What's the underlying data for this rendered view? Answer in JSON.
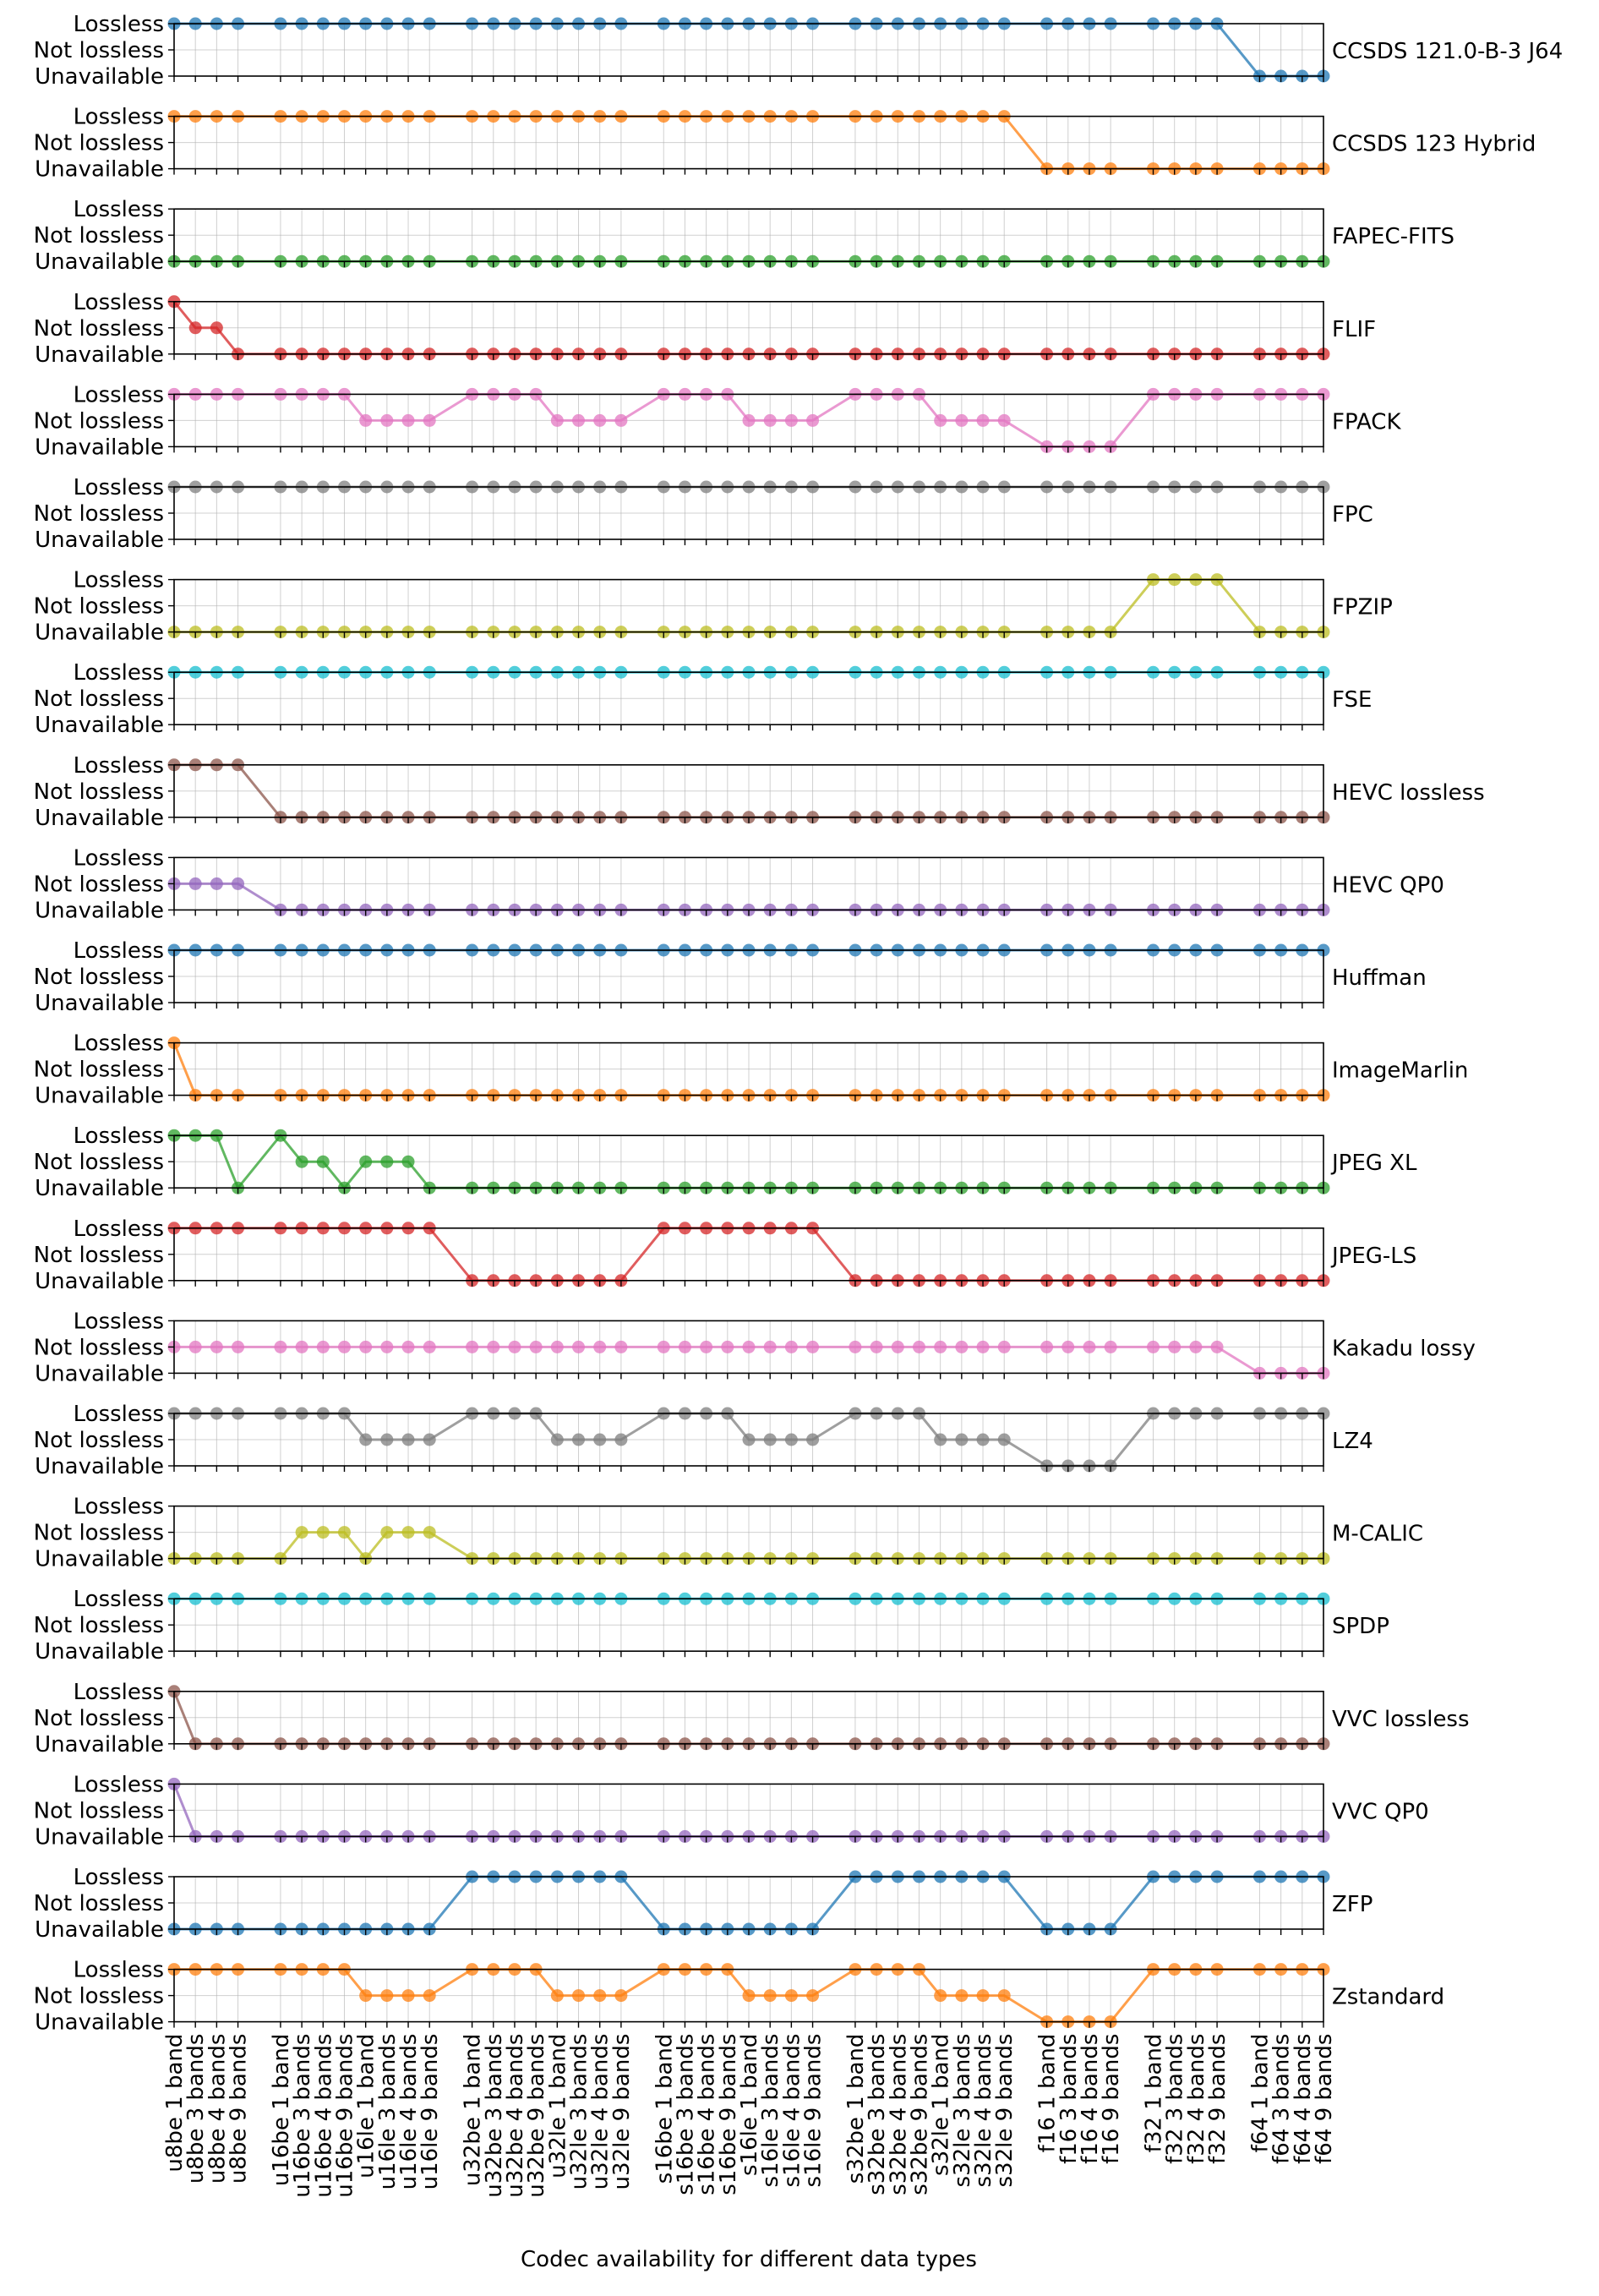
{
  "chart_data": {
    "type": "line",
    "xlabel": "Codec availability for different data types",
    "ylabel": "",
    "level_labels": [
      "Unavailable",
      "Not lossless",
      "Lossless"
    ],
    "grid": true,
    "colors": [
      "#1f77b4",
      "#ff7f0e",
      "#2ca02c",
      "#d62728",
      "#e377c2",
      "#7f7f7f",
      "#bcbd22",
      "#17becf",
      "#8c564b",
      "#9467bd",
      "#1f77b4",
      "#ff7f0e",
      "#2ca02c",
      "#d62728",
      "#e377c2",
      "#7f7f7f",
      "#bcbd22",
      "#17becf",
      "#8c564b",
      "#9467bd",
      "#1f77b4",
      "#ff7f0e"
    ],
    "categories": [
      "u8be 1 band",
      "u8be 3 bands",
      "u8be 4 bands",
      "u8be 9 bands",
      "u16be 1 band",
      "u16be 3 bands",
      "u16be 4 bands",
      "u16be 9 bands",
      "u16le 1 band",
      "u16le 3 bands",
      "u16le 4 bands",
      "u16le 9 bands",
      "u32be 1 band",
      "u32be 3 bands",
      "u32be 4 bands",
      "u32be 9 bands",
      "u32le 1 band",
      "u32le 3 bands",
      "u32le 4 bands",
      "u32le 9 bands",
      "s16be 1 band",
      "s16be 3 bands",
      "s16be 4 bands",
      "s16be 9 bands",
      "s16le 1 band",
      "s16le 3 bands",
      "s16le 4 bands",
      "s16le 9 bands",
      "s32be 1 band",
      "s32be 3 bands",
      "s32be 4 bands",
      "s32be 9 bands",
      "s32le 1 band",
      "s32le 3 bands",
      "s32le 4 bands",
      "s32le 9 bands",
      "f16 1 band",
      "f16 3 bands",
      "f16 4 bands",
      "f16 9 bands",
      "f32 1 band",
      "f32 3 bands",
      "f32 4 bands",
      "f32 9 bands",
      "f64 1 band",
      "f64 3 bands",
      "f64 4 bands",
      "f64 9 bands"
    ],
    "x_positions": [
      0,
      1,
      2,
      3,
      5,
      6,
      7,
      8,
      9,
      10,
      11,
      12,
      14,
      15,
      16,
      17,
      18,
      19,
      20,
      21,
      23,
      24,
      25,
      26,
      27,
      28,
      29,
      30,
      32,
      33,
      34,
      35,
      36,
      37,
      38,
      39,
      41,
      42,
      43,
      44,
      46,
      47,
      48,
      49,
      51,
      52,
      53,
      54
    ],
    "xlim": [
      0,
      54
    ],
    "series": [
      {
        "name": "CCSDS 121.0-B-3 J64",
        "values": [
          2,
          2,
          2,
          2,
          2,
          2,
          2,
          2,
          2,
          2,
          2,
          2,
          2,
          2,
          2,
          2,
          2,
          2,
          2,
          2,
          2,
          2,
          2,
          2,
          2,
          2,
          2,
          2,
          2,
          2,
          2,
          2,
          2,
          2,
          2,
          2,
          2,
          2,
          2,
          2,
          2,
          2,
          2,
          2,
          0,
          0,
          0,
          0
        ]
      },
      {
        "name": "CCSDS 123 Hybrid",
        "values": [
          2,
          2,
          2,
          2,
          2,
          2,
          2,
          2,
          2,
          2,
          2,
          2,
          2,
          2,
          2,
          2,
          2,
          2,
          2,
          2,
          2,
          2,
          2,
          2,
          2,
          2,
          2,
          2,
          2,
          2,
          2,
          2,
          2,
          2,
          2,
          2,
          0,
          0,
          0,
          0,
          0,
          0,
          0,
          0,
          0,
          0,
          0,
          0
        ]
      },
      {
        "name": "FAPEC-FITS",
        "values": [
          0,
          0,
          0,
          0,
          0,
          0,
          0,
          0,
          0,
          0,
          0,
          0,
          0,
          0,
          0,
          0,
          0,
          0,
          0,
          0,
          0,
          0,
          0,
          0,
          0,
          0,
          0,
          0,
          0,
          0,
          0,
          0,
          0,
          0,
          0,
          0,
          0,
          0,
          0,
          0,
          0,
          0,
          0,
          0,
          0,
          0,
          0,
          0
        ]
      },
      {
        "name": "FLIF",
        "values": [
          2,
          1,
          1,
          0,
          0,
          0,
          0,
          0,
          0,
          0,
          0,
          0,
          0,
          0,
          0,
          0,
          0,
          0,
          0,
          0,
          0,
          0,
          0,
          0,
          0,
          0,
          0,
          0,
          0,
          0,
          0,
          0,
          0,
          0,
          0,
          0,
          0,
          0,
          0,
          0,
          0,
          0,
          0,
          0,
          0,
          0,
          0,
          0
        ]
      },
      {
        "name": "FPACK",
        "values": [
          2,
          2,
          2,
          2,
          2,
          2,
          2,
          2,
          1,
          1,
          1,
          1,
          2,
          2,
          2,
          2,
          1,
          1,
          1,
          1,
          2,
          2,
          2,
          2,
          1,
          1,
          1,
          1,
          2,
          2,
          2,
          2,
          1,
          1,
          1,
          1,
          0,
          0,
          0,
          0,
          2,
          2,
          2,
          2,
          2,
          2,
          2,
          2
        ]
      },
      {
        "name": "FPC",
        "values": [
          2,
          2,
          2,
          2,
          2,
          2,
          2,
          2,
          2,
          2,
          2,
          2,
          2,
          2,
          2,
          2,
          2,
          2,
          2,
          2,
          2,
          2,
          2,
          2,
          2,
          2,
          2,
          2,
          2,
          2,
          2,
          2,
          2,
          2,
          2,
          2,
          2,
          2,
          2,
          2,
          2,
          2,
          2,
          2,
          2,
          2,
          2,
          2
        ]
      },
      {
        "name": "FPZIP",
        "values": [
          0,
          0,
          0,
          0,
          0,
          0,
          0,
          0,
          0,
          0,
          0,
          0,
          0,
          0,
          0,
          0,
          0,
          0,
          0,
          0,
          0,
          0,
          0,
          0,
          0,
          0,
          0,
          0,
          0,
          0,
          0,
          0,
          0,
          0,
          0,
          0,
          0,
          0,
          0,
          0,
          2,
          2,
          2,
          2,
          0,
          0,
          0,
          0
        ]
      },
      {
        "name": "FSE",
        "values": [
          2,
          2,
          2,
          2,
          2,
          2,
          2,
          2,
          2,
          2,
          2,
          2,
          2,
          2,
          2,
          2,
          2,
          2,
          2,
          2,
          2,
          2,
          2,
          2,
          2,
          2,
          2,
          2,
          2,
          2,
          2,
          2,
          2,
          2,
          2,
          2,
          2,
          2,
          2,
          2,
          2,
          2,
          2,
          2,
          2,
          2,
          2,
          2
        ]
      },
      {
        "name": "HEVC lossless",
        "values": [
          2,
          2,
          2,
          2,
          0,
          0,
          0,
          0,
          0,
          0,
          0,
          0,
          0,
          0,
          0,
          0,
          0,
          0,
          0,
          0,
          0,
          0,
          0,
          0,
          0,
          0,
          0,
          0,
          0,
          0,
          0,
          0,
          0,
          0,
          0,
          0,
          0,
          0,
          0,
          0,
          0,
          0,
          0,
          0,
          0,
          0,
          0,
          0
        ]
      },
      {
        "name": "HEVC QP0",
        "values": [
          1,
          1,
          1,
          1,
          0,
          0,
          0,
          0,
          0,
          0,
          0,
          0,
          0,
          0,
          0,
          0,
          0,
          0,
          0,
          0,
          0,
          0,
          0,
          0,
          0,
          0,
          0,
          0,
          0,
          0,
          0,
          0,
          0,
          0,
          0,
          0,
          0,
          0,
          0,
          0,
          0,
          0,
          0,
          0,
          0,
          0,
          0,
          0
        ]
      },
      {
        "name": "Huffman",
        "values": [
          2,
          2,
          2,
          2,
          2,
          2,
          2,
          2,
          2,
          2,
          2,
          2,
          2,
          2,
          2,
          2,
          2,
          2,
          2,
          2,
          2,
          2,
          2,
          2,
          2,
          2,
          2,
          2,
          2,
          2,
          2,
          2,
          2,
          2,
          2,
          2,
          2,
          2,
          2,
          2,
          2,
          2,
          2,
          2,
          2,
          2,
          2,
          2
        ]
      },
      {
        "name": "ImageMarlin",
        "values": [
          2,
          0,
          0,
          0,
          0,
          0,
          0,
          0,
          0,
          0,
          0,
          0,
          0,
          0,
          0,
          0,
          0,
          0,
          0,
          0,
          0,
          0,
          0,
          0,
          0,
          0,
          0,
          0,
          0,
          0,
          0,
          0,
          0,
          0,
          0,
          0,
          0,
          0,
          0,
          0,
          0,
          0,
          0,
          0,
          0,
          0,
          0,
          0
        ]
      },
      {
        "name": "JPEG XL",
        "values": [
          2,
          2,
          2,
          0,
          2,
          1,
          1,
          0,
          1,
          1,
          1,
          0,
          0,
          0,
          0,
          0,
          0,
          0,
          0,
          0,
          0,
          0,
          0,
          0,
          0,
          0,
          0,
          0,
          0,
          0,
          0,
          0,
          0,
          0,
          0,
          0,
          0,
          0,
          0,
          0,
          0,
          0,
          0,
          0,
          0,
          0,
          0,
          0
        ]
      },
      {
        "name": "JPEG-LS",
        "values": [
          2,
          2,
          2,
          2,
          2,
          2,
          2,
          2,
          2,
          2,
          2,
          2,
          0,
          0,
          0,
          0,
          0,
          0,
          0,
          0,
          2,
          2,
          2,
          2,
          2,
          2,
          2,
          2,
          0,
          0,
          0,
          0,
          0,
          0,
          0,
          0,
          0,
          0,
          0,
          0,
          0,
          0,
          0,
          0,
          0,
          0,
          0,
          0
        ]
      },
      {
        "name": "Kakadu  lossy",
        "values": [
          1,
          1,
          1,
          1,
          1,
          1,
          1,
          1,
          1,
          1,
          1,
          1,
          1,
          1,
          1,
          1,
          1,
          1,
          1,
          1,
          1,
          1,
          1,
          1,
          1,
          1,
          1,
          1,
          1,
          1,
          1,
          1,
          1,
          1,
          1,
          1,
          1,
          1,
          1,
          1,
          1,
          1,
          1,
          1,
          0,
          0,
          0,
          0
        ]
      },
      {
        "name": "LZ4",
        "values": [
          2,
          2,
          2,
          2,
          2,
          2,
          2,
          2,
          1,
          1,
          1,
          1,
          2,
          2,
          2,
          2,
          1,
          1,
          1,
          1,
          2,
          2,
          2,
          2,
          1,
          1,
          1,
          1,
          2,
          2,
          2,
          2,
          1,
          1,
          1,
          1,
          0,
          0,
          0,
          0,
          2,
          2,
          2,
          2,
          2,
          2,
          2,
          2
        ]
      },
      {
        "name": "M-CALIC",
        "values": [
          0,
          0,
          0,
          0,
          0,
          1,
          1,
          1,
          0,
          1,
          1,
          1,
          0,
          0,
          0,
          0,
          0,
          0,
          0,
          0,
          0,
          0,
          0,
          0,
          0,
          0,
          0,
          0,
          0,
          0,
          0,
          0,
          0,
          0,
          0,
          0,
          0,
          0,
          0,
          0,
          0,
          0,
          0,
          0,
          0,
          0,
          0,
          0
        ]
      },
      {
        "name": "SPDP",
        "values": [
          2,
          2,
          2,
          2,
          2,
          2,
          2,
          2,
          2,
          2,
          2,
          2,
          2,
          2,
          2,
          2,
          2,
          2,
          2,
          2,
          2,
          2,
          2,
          2,
          2,
          2,
          2,
          2,
          2,
          2,
          2,
          2,
          2,
          2,
          2,
          2,
          2,
          2,
          2,
          2,
          2,
          2,
          2,
          2,
          2,
          2,
          2,
          2
        ]
      },
      {
        "name": "VVC lossless",
        "values": [
          2,
          0,
          0,
          0,
          0,
          0,
          0,
          0,
          0,
          0,
          0,
          0,
          0,
          0,
          0,
          0,
          0,
          0,
          0,
          0,
          0,
          0,
          0,
          0,
          0,
          0,
          0,
          0,
          0,
          0,
          0,
          0,
          0,
          0,
          0,
          0,
          0,
          0,
          0,
          0,
          0,
          0,
          0,
          0,
          0,
          0,
          0,
          0
        ]
      },
      {
        "name": "VVC QP0",
        "values": [
          2,
          0,
          0,
          0,
          0,
          0,
          0,
          0,
          0,
          0,
          0,
          0,
          0,
          0,
          0,
          0,
          0,
          0,
          0,
          0,
          0,
          0,
          0,
          0,
          0,
          0,
          0,
          0,
          0,
          0,
          0,
          0,
          0,
          0,
          0,
          0,
          0,
          0,
          0,
          0,
          0,
          0,
          0,
          0,
          0,
          0,
          0,
          0
        ]
      },
      {
        "name": "ZFP",
        "values": [
          0,
          0,
          0,
          0,
          0,
          0,
          0,
          0,
          0,
          0,
          0,
          0,
          2,
          2,
          2,
          2,
          2,
          2,
          2,
          2,
          0,
          0,
          0,
          0,
          0,
          0,
          0,
          0,
          2,
          2,
          2,
          2,
          2,
          2,
          2,
          2,
          0,
          0,
          0,
          0,
          2,
          2,
          2,
          2,
          2,
          2,
          2,
          2
        ]
      },
      {
        "name": "Zstandard",
        "values": [
          2,
          2,
          2,
          2,
          2,
          2,
          2,
          2,
          1,
          1,
          1,
          1,
          2,
          2,
          2,
          2,
          1,
          1,
          1,
          1,
          2,
          2,
          2,
          2,
          1,
          1,
          1,
          1,
          2,
          2,
          2,
          2,
          1,
          1,
          1,
          1,
          0,
          0,
          0,
          0,
          2,
          2,
          2,
          2,
          2,
          2,
          2,
          2
        ]
      }
    ]
  }
}
